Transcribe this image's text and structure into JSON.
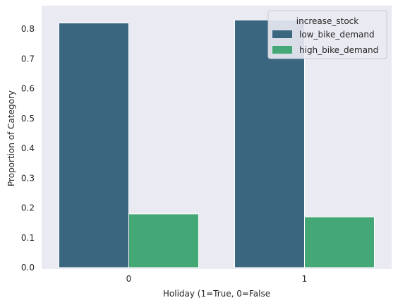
{
  "chart_data": {
    "type": "bar",
    "title": "",
    "xlabel": "Holiday (1=True, 0=False",
    "ylabel": "Proportion of Category",
    "categories": [
      "0",
      "1"
    ],
    "series": [
      {
        "name": "low_bike_demand",
        "values": [
          0.82,
          0.83
        ],
        "color": "#3b6680"
      },
      {
        "name": "high_bike_demand",
        "values": [
          0.18,
          0.17
        ],
        "color": "#44a876"
      }
    ],
    "ylim": [
      0,
      0.85
    ],
    "yticks": [
      "0.0",
      "0.1",
      "0.2",
      "0.3",
      "0.4",
      "0.5",
      "0.6",
      "0.7",
      "0.8"
    ],
    "legend": {
      "title": "increase_stock",
      "placement": "top-right"
    },
    "grid": false,
    "background": "#eaeaf2"
  }
}
